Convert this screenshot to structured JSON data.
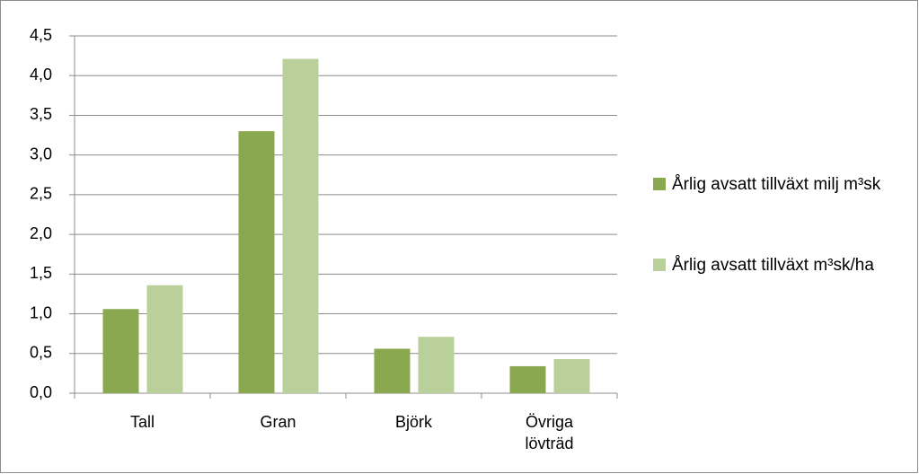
{
  "chart_data": {
    "type": "bar",
    "categories": [
      "Tall",
      "Gran",
      "Björk",
      "Övriga lövträd"
    ],
    "series": [
      {
        "name": "Årlig avsatt tillväxt milj m³sk",
        "color": "#8aa84f",
        "values": [
          1.06,
          3.3,
          0.56,
          0.34
        ]
      },
      {
        "name": "Årlig avsatt tillväxt m³sk/ha",
        "color": "#b9d09a",
        "values": [
          1.36,
          4.21,
          0.71,
          0.43
        ]
      }
    ],
    "ylim": [
      0,
      4.5
    ],
    "yticks": [
      {
        "value": 0,
        "label": "0,0"
      },
      {
        "value": 0.5,
        "label": "0,5"
      },
      {
        "value": 1,
        "label": "1,0"
      },
      {
        "value": 1.5,
        "label": "1,5"
      },
      {
        "value": 2,
        "label": "2,0"
      },
      {
        "value": 2.5,
        "label": "2,5"
      },
      {
        "value": 3,
        "label": "3,0"
      },
      {
        "value": 3.5,
        "label": "3,5"
      },
      {
        "value": 4,
        "label": "4,0"
      },
      {
        "value": 4.5,
        "label": "4,5"
      }
    ],
    "grid": true,
    "legend": "right"
  }
}
